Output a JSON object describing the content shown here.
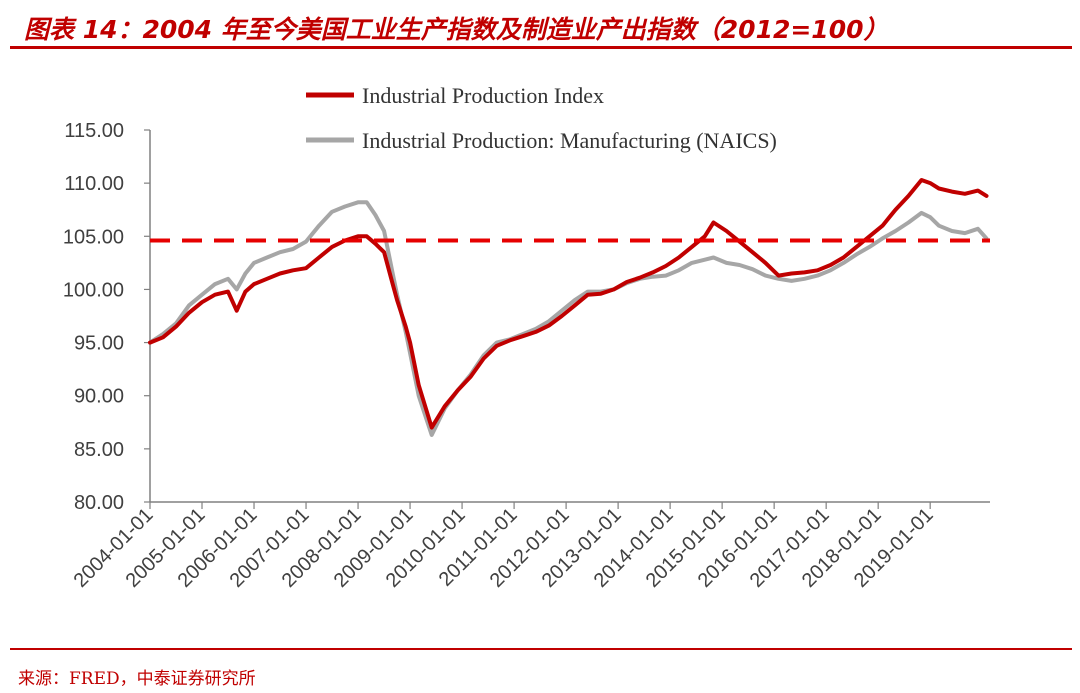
{
  "header": {
    "title": "图表 14：2004 年至今美国工业生产指数及制造业产出指数（2012=100）"
  },
  "footer": {
    "source": "来源：FRED，中泰证券研究所"
  },
  "colors": {
    "accent": "#c00000",
    "series1": "#c00000",
    "series2": "#a6a6a6",
    "reference_line": "#e60000"
  },
  "chart_data": {
    "type": "line",
    "title": "",
    "xlabel": "",
    "ylabel": "",
    "ylim": [
      80,
      115
    ],
    "yticks": [
      "80.00",
      "85.00",
      "90.00",
      "95.00",
      "100.00",
      "105.00",
      "110.00",
      "115.00"
    ],
    "xticks": [
      "2004-01-01",
      "2005-01-01",
      "2006-01-01",
      "2007-01-01",
      "2008-01-01",
      "2009-01-01",
      "2010-01-01",
      "2011-01-01",
      "2012-01-01",
      "2013-01-01",
      "2014-01-01",
      "2015-01-01",
      "2016-01-01",
      "2017-01-01",
      "2018-01-01",
      "2019-01-01"
    ],
    "grid": false,
    "legend_position": "top",
    "reference_line": {
      "y": 104.6,
      "style": "dashed"
    },
    "series": [
      {
        "name": "Industrial Production Index",
        "points": [
          [
            "2004-01",
            95.0
          ],
          [
            "2004-04",
            95.5
          ],
          [
            "2004-07",
            96.5
          ],
          [
            "2004-10",
            97.8
          ],
          [
            "2005-01",
            98.8
          ],
          [
            "2005-04",
            99.5
          ],
          [
            "2005-07",
            99.8
          ],
          [
            "2005-09",
            98.0
          ],
          [
            "2005-11",
            99.8
          ],
          [
            "2006-01",
            100.5
          ],
          [
            "2006-04",
            101.0
          ],
          [
            "2006-07",
            101.5
          ],
          [
            "2006-10",
            101.8
          ],
          [
            "2007-01",
            102.0
          ],
          [
            "2007-04",
            103.0
          ],
          [
            "2007-07",
            104.0
          ],
          [
            "2007-10",
            104.6
          ],
          [
            "2008-01",
            105.0
          ],
          [
            "2008-03",
            105.0
          ],
          [
            "2008-05",
            104.3
          ],
          [
            "2008-07",
            103.5
          ],
          [
            "2008-09",
            100.5
          ],
          [
            "2008-10",
            99.0
          ],
          [
            "2008-12",
            96.5
          ],
          [
            "2009-01",
            95.0
          ],
          [
            "2009-03",
            91.0
          ],
          [
            "2009-06",
            87.0
          ],
          [
            "2009-09",
            89.0
          ],
          [
            "2009-12",
            90.5
          ],
          [
            "2010-03",
            91.8
          ],
          [
            "2010-06",
            93.5
          ],
          [
            "2010-09",
            94.7
          ],
          [
            "2010-12",
            95.2
          ],
          [
            "2011-03",
            95.6
          ],
          [
            "2011-06",
            96.0
          ],
          [
            "2011-09",
            96.6
          ],
          [
            "2011-12",
            97.5
          ],
          [
            "2012-03",
            98.5
          ],
          [
            "2012-06",
            99.5
          ],
          [
            "2012-09",
            99.6
          ],
          [
            "2012-12",
            100.0
          ],
          [
            "2013-03",
            100.7
          ],
          [
            "2013-06",
            101.1
          ],
          [
            "2013-09",
            101.6
          ],
          [
            "2013-12",
            102.2
          ],
          [
            "2014-03",
            103.0
          ],
          [
            "2014-06",
            104.0
          ],
          [
            "2014-09",
            105.0
          ],
          [
            "2014-11",
            106.3
          ],
          [
            "2015-02",
            105.5
          ],
          [
            "2015-05",
            104.5
          ],
          [
            "2015-08",
            103.5
          ],
          [
            "2015-11",
            102.5
          ],
          [
            "2016-02",
            101.3
          ],
          [
            "2016-05",
            101.5
          ],
          [
            "2016-08",
            101.6
          ],
          [
            "2016-11",
            101.8
          ],
          [
            "2017-02",
            102.3
          ],
          [
            "2017-05",
            103.0
          ],
          [
            "2017-08",
            104.0
          ],
          [
            "2017-11",
            105.0
          ],
          [
            "2018-02",
            106.0
          ],
          [
            "2018-05",
            107.5
          ],
          [
            "2018-08",
            108.8
          ],
          [
            "2018-11",
            110.3
          ],
          [
            "2019-01",
            110.0
          ],
          [
            "2019-03",
            109.5
          ],
          [
            "2019-06",
            109.2
          ],
          [
            "2019-09",
            109.0
          ],
          [
            "2019-12",
            109.3
          ],
          [
            "2020-02",
            108.8
          ]
        ]
      },
      {
        "name": "Industrial Production: Manufacturing (NAICS)",
        "points": [
          [
            "2004-01",
            95.0
          ],
          [
            "2004-04",
            95.8
          ],
          [
            "2004-07",
            96.8
          ],
          [
            "2004-10",
            98.5
          ],
          [
            "2005-01",
            99.5
          ],
          [
            "2005-04",
            100.5
          ],
          [
            "2005-07",
            101.0
          ],
          [
            "2005-09",
            100.0
          ],
          [
            "2005-11",
            101.5
          ],
          [
            "2006-01",
            102.5
          ],
          [
            "2006-04",
            103.0
          ],
          [
            "2006-07",
            103.5
          ],
          [
            "2006-10",
            103.8
          ],
          [
            "2007-01",
            104.5
          ],
          [
            "2007-04",
            106.0
          ],
          [
            "2007-07",
            107.3
          ],
          [
            "2007-10",
            107.8
          ],
          [
            "2008-01",
            108.2
          ],
          [
            "2008-03",
            108.2
          ],
          [
            "2008-05",
            107.0
          ],
          [
            "2008-07",
            105.5
          ],
          [
            "2008-09",
            101.5
          ],
          [
            "2008-10",
            99.5
          ],
          [
            "2008-12",
            96.0
          ],
          [
            "2009-01",
            94.0
          ],
          [
            "2009-03",
            90.0
          ],
          [
            "2009-06",
            86.3
          ],
          [
            "2009-09",
            88.8
          ],
          [
            "2009-12",
            90.5
          ],
          [
            "2010-03",
            92.0
          ],
          [
            "2010-06",
            93.8
          ],
          [
            "2010-09",
            95.0
          ],
          [
            "2010-12",
            95.3
          ],
          [
            "2011-03",
            95.8
          ],
          [
            "2011-06",
            96.3
          ],
          [
            "2011-09",
            97.0
          ],
          [
            "2011-12",
            98.0
          ],
          [
            "2012-03",
            99.0
          ],
          [
            "2012-06",
            99.8
          ],
          [
            "2012-09",
            99.8
          ],
          [
            "2012-12",
            100.0
          ],
          [
            "2013-03",
            100.6
          ],
          [
            "2013-06",
            101.0
          ],
          [
            "2013-09",
            101.2
          ],
          [
            "2013-12",
            101.3
          ],
          [
            "2014-03",
            101.8
          ],
          [
            "2014-06",
            102.5
          ],
          [
            "2014-09",
            102.8
          ],
          [
            "2014-11",
            103.0
          ],
          [
            "2015-02",
            102.5
          ],
          [
            "2015-05",
            102.3
          ],
          [
            "2015-08",
            101.9
          ],
          [
            "2015-11",
            101.3
          ],
          [
            "2016-02",
            101.0
          ],
          [
            "2016-05",
            100.8
          ],
          [
            "2016-08",
            101.0
          ],
          [
            "2016-11",
            101.3
          ],
          [
            "2017-02",
            101.8
          ],
          [
            "2017-05",
            102.5
          ],
          [
            "2017-08",
            103.3
          ],
          [
            "2017-11",
            104.0
          ],
          [
            "2018-02",
            104.8
          ],
          [
            "2018-05",
            105.5
          ],
          [
            "2018-08",
            106.3
          ],
          [
            "2018-11",
            107.2
          ],
          [
            "2019-01",
            106.8
          ],
          [
            "2019-03",
            106.0
          ],
          [
            "2019-06",
            105.5
          ],
          [
            "2019-09",
            105.3
          ],
          [
            "2019-12",
            105.7
          ],
          [
            "2020-02",
            104.8
          ]
        ]
      }
    ]
  }
}
